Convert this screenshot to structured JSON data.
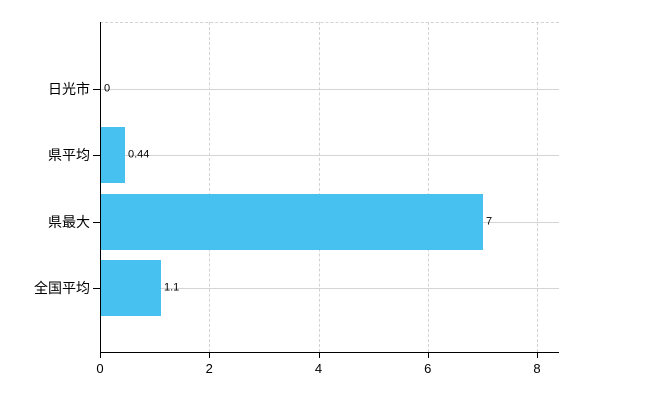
{
  "chart_data": {
    "type": "bar",
    "orientation": "horizontal",
    "title": "",
    "xlabel": "",
    "ylabel": "",
    "categories": [
      "日光市",
      "県平均",
      "県最大",
      "全国平均"
    ],
    "values": [
      0,
      0.44,
      7,
      1.1
    ],
    "value_labels": [
      "0",
      "0.44",
      "7",
      "1.1"
    ],
    "x_ticks": [
      0,
      2,
      4,
      6,
      8
    ],
    "x_tick_labels": [
      "0",
      "2",
      "4",
      "6",
      "8"
    ],
    "xlim": [
      0,
      8.4
    ],
    "grid": true,
    "legend": false,
    "bar_color": "#47c1f0",
    "gridline_color": "#d2d2d2",
    "axis_color": "#000000",
    "text_color": "#000000",
    "background_color": "#ffffff"
  }
}
